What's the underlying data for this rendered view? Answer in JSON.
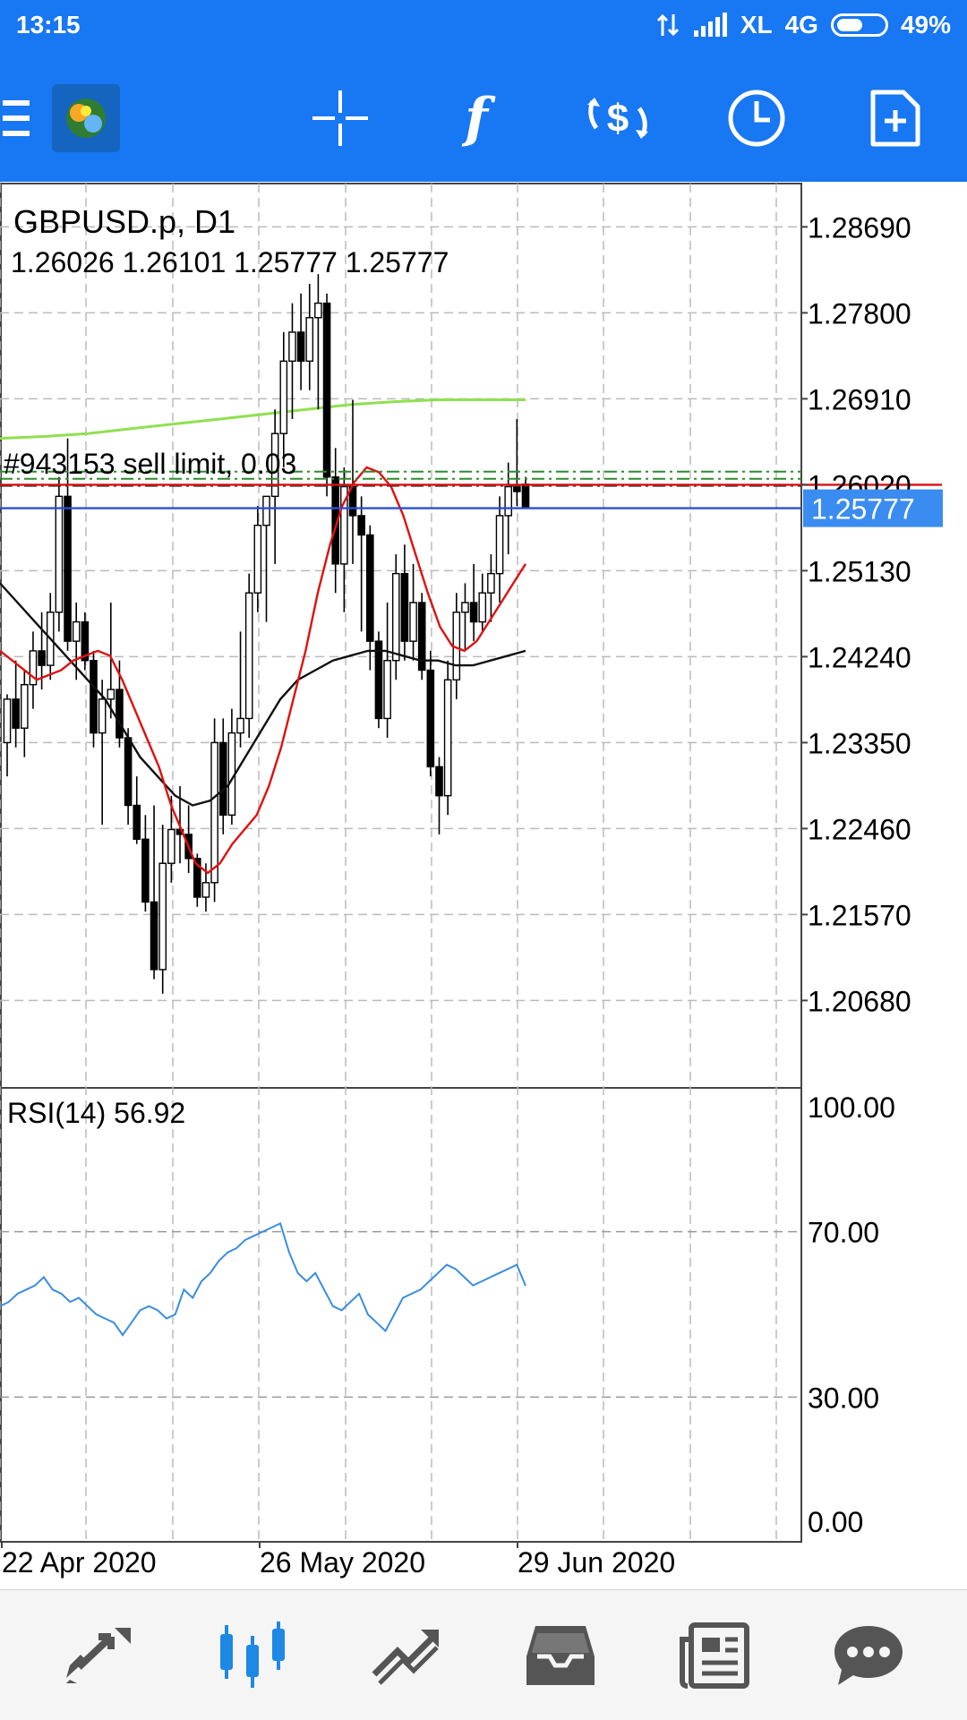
{
  "status_bar": {
    "time": "13:15",
    "carrier": "XL",
    "network": "4G",
    "battery": "49%",
    "battery_level": 0.49,
    "icons": [
      "data-transfer-icon",
      "signal-icon",
      "battery-icon"
    ]
  },
  "toolbar": {
    "icons": [
      "menu-icon",
      "metatrader-logo-icon",
      "crosshair-icon",
      "indicators-icon",
      "trade-icon",
      "timeframe-icon",
      "new-order-icon"
    ],
    "accent": "#1877f2"
  },
  "chart": {
    "symbol": "GBPUSD.p, D1",
    "ohlc": "1.26026 1.26101 1.25777 1.25777",
    "order_label": "#943153 sell limit, 0.03",
    "current_price": "1.25777",
    "current_price_bg": "#3b8cf0",
    "price_axis": [
      "1.28690",
      "1.27800",
      "1.26910",
      "1.26020",
      "1.25130",
      "1.24240",
      "1.23350",
      "1.22460",
      "1.21570",
      "1.20680"
    ],
    "date_axis": [
      "22 Apr 2020",
      "26 May 2020",
      "29 Jun 2020"
    ],
    "colors": {
      "ma_fast": "#e01010",
      "ma_slow": "#111111",
      "ma_long": "#90e050",
      "rsi_line": "#3a8de0",
      "order_line": "#2e8b2e",
      "bid_line": "#2a4fd8",
      "ask_line": "#d81010"
    }
  },
  "rsi": {
    "label": "RSI(14) 56.92",
    "axis": [
      "100.00",
      "70.00",
      "30.00",
      "0.00"
    ]
  },
  "bottom_nav": {
    "items": [
      "quotes-icon",
      "chart-icon",
      "trade-icon",
      "history-icon",
      "news-icon",
      "messages-icon"
    ],
    "active": "chart-icon",
    "active_color": "#1e88e5"
  },
  "chart_data": {
    "type": "candlestick",
    "title": "GBPUSD.p, D1",
    "ylim": [
      1.2035,
      1.2902
    ],
    "last_close": 1.25777,
    "candles": [
      [
        1.2335,
        1.2385,
        1.23,
        1.238
      ],
      [
        1.238,
        1.242,
        1.233,
        1.235
      ],
      [
        1.235,
        1.241,
        1.232,
        1.2395
      ],
      [
        1.2395,
        1.245,
        1.237,
        1.243
      ],
      [
        1.243,
        1.247,
        1.239,
        1.2415
      ],
      [
        1.2415,
        1.249,
        1.24,
        1.247
      ],
      [
        1.247,
        1.261,
        1.245,
        1.259
      ],
      [
        1.259,
        1.265,
        1.243,
        1.244
      ],
      [
        1.244,
        1.248,
        1.24,
        1.246
      ],
      [
        1.246,
        1.247,
        1.241,
        1.242
      ],
      [
        1.242,
        1.243,
        1.233,
        1.2345
      ],
      [
        1.2345,
        1.24,
        1.225,
        1.238
      ],
      [
        1.238,
        1.248,
        1.236,
        1.239
      ],
      [
        1.239,
        1.242,
        1.233,
        1.234
      ],
      [
        1.234,
        1.235,
        1.225,
        1.227
      ],
      [
        1.227,
        1.23,
        1.223,
        1.2235
      ],
      [
        1.2235,
        1.226,
        1.216,
        1.217
      ],
      [
        1.217,
        1.227,
        1.209,
        1.21
      ],
      [
        1.21,
        1.225,
        1.2075,
        1.221
      ],
      [
        1.221,
        1.228,
        1.219,
        1.2245
      ],
      [
        1.2245,
        1.229,
        1.221,
        1.224
      ],
      [
        1.224,
        1.227,
        1.22,
        1.2215
      ],
      [
        1.2215,
        1.222,
        1.2165,
        1.2175
      ],
      [
        1.2175,
        1.221,
        1.216,
        1.219
      ],
      [
        1.219,
        1.236,
        1.217,
        1.2335
      ],
      [
        1.2335,
        1.236,
        1.224,
        1.226
      ],
      [
        1.226,
        1.237,
        1.225,
        1.2345
      ],
      [
        1.2345,
        1.245,
        1.233,
        1.236
      ],
      [
        1.236,
        1.251,
        1.234,
        1.249
      ],
      [
        1.249,
        1.258,
        1.247,
        1.256
      ],
      [
        1.256,
        1.259,
        1.246,
        1.259
      ],
      [
        1.259,
        1.268,
        1.252,
        1.2655
      ],
      [
        1.2655,
        1.276,
        1.262,
        1.273
      ],
      [
        1.273,
        1.279,
        1.267,
        1.276
      ],
      [
        1.276,
        1.28,
        1.27,
        1.273
      ],
      [
        1.273,
        1.281,
        1.27,
        1.2775
      ],
      [
        1.2775,
        1.282,
        1.268,
        1.279
      ],
      [
        1.279,
        1.28,
        1.259,
        1.261
      ],
      [
        1.261,
        1.264,
        1.249,
        1.252
      ],
      [
        1.252,
        1.262,
        1.247,
        1.26
      ],
      [
        1.26,
        1.269,
        1.252,
        1.257
      ],
      [
        1.257,
        1.259,
        1.245,
        1.255
      ],
      [
        1.255,
        1.256,
        1.241,
        1.244
      ],
      [
        1.244,
        1.245,
        1.235,
        1.236
      ],
      [
        1.236,
        1.248,
        1.234,
        1.242
      ],
      [
        1.242,
        1.253,
        1.24,
        1.251
      ],
      [
        1.251,
        1.254,
        1.242,
        1.244
      ],
      [
        1.244,
        1.252,
        1.242,
        1.248
      ],
      [
        1.248,
        1.249,
        1.24,
        1.241
      ],
      [
        1.241,
        1.243,
        1.23,
        1.231
      ],
      [
        1.231,
        1.232,
        1.224,
        1.228
      ],
      [
        1.228,
        1.242,
        1.226,
        1.24
      ],
      [
        1.24,
        1.249,
        1.238,
        1.247
      ],
      [
        1.247,
        1.25,
        1.243,
        1.248
      ],
      [
        1.248,
        1.252,
        1.244,
        1.246
      ],
      [
        1.246,
        1.251,
        1.245,
        1.249
      ],
      [
        1.249,
        1.253,
        1.246,
        1.251
      ],
      [
        1.251,
        1.259,
        1.248,
        1.257
      ],
      [
        1.257,
        1.2625,
        1.253,
        1.26
      ],
      [
        1.26,
        1.267,
        1.258,
        1.2595
      ],
      [
        1.26026,
        1.26101,
        1.25777,
        1.25777
      ]
    ],
    "ma_fast": [
      1.243,
      1.242,
      1.241,
      1.24,
      1.2405,
      1.241,
      1.242,
      1.2425,
      1.243,
      1.2425,
      1.24,
      1.237,
      1.234,
      1.231,
      1.227,
      1.224,
      1.221,
      1.22,
      1.221,
      1.223,
      1.2245,
      1.226,
      1.229,
      1.233,
      1.238,
      1.243,
      1.249,
      1.254,
      1.258,
      1.2605,
      1.262,
      1.2615,
      1.26,
      1.257,
      1.253,
      1.249,
      1.2455,
      1.2435,
      1.243,
      1.244,
      1.246,
      1.248,
      1.25,
      1.252
    ],
    "ma_slow": [
      1.25,
      1.248,
      1.246,
      1.244,
      1.242,
      1.24,
      1.238,
      1.235,
      1.232,
      1.23,
      1.228,
      1.227,
      1.2275,
      1.229,
      1.232,
      1.235,
      1.238,
      1.24,
      1.241,
      1.242,
      1.2425,
      1.243,
      1.243,
      1.2425,
      1.242,
      1.242,
      1.2415,
      1.2415,
      1.242,
      1.2425,
      1.243
    ],
    "ma_long": [
      1.265,
      1.2652,
      1.2655,
      1.266,
      1.2665,
      1.267,
      1.2675,
      1.268,
      1.2685,
      1.2688,
      1.269,
      1.269,
      1.269
    ],
    "rsi": [
      52,
      53,
      55,
      56,
      57,
      59,
      56,
      55,
      53,
      54,
      52,
      50,
      49,
      48,
      45,
      48,
      51,
      52,
      51,
      49,
      50,
      56,
      54,
      58,
      60,
      63,
      65,
      66,
      68,
      69,
      70,
      71,
      72,
      65,
      60,
      58,
      60,
      56,
      52,
      51,
      53,
      55,
      50,
      48,
      46,
      50,
      54,
      55,
      56,
      58,
      60,
      62,
      61,
      59,
      57,
      58,
      59,
      60,
      61,
      62,
      56.92
    ],
    "rsi_ylim": [
      0,
      100
    ]
  }
}
